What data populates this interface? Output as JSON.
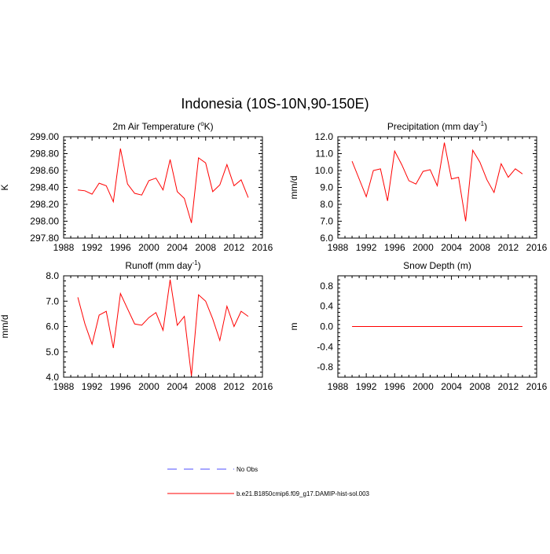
{
  "figure": {
    "title": "Indonesia (10S-10N,90-150E)"
  },
  "legend": {
    "items": [
      {
        "label": "No Obs",
        "color": "#4d4dff",
        "dash": true
      },
      {
        "label": "b.e21.B1850cmip6.f09_g17.DAMIP-hist-sol.003",
        "color": "#ff0000",
        "dash": false
      }
    ]
  },
  "chart_data": [
    {
      "type": "line",
      "title_main": "2m Air Temperature (",
      "title_sup": "o",
      "title_tail": "K)",
      "ylabel": "K",
      "xlim": [
        1988,
        2016
      ],
      "ylim": [
        297.8,
        299.0
      ],
      "xticks": [
        1988,
        1992,
        1996,
        2000,
        2004,
        2008,
        2012,
        2016
      ],
      "yticks": [
        297.8,
        298.0,
        298.2,
        298.4,
        298.6,
        298.8,
        299.0
      ],
      "ytick_labels": [
        "297.80",
        "298.00",
        "298.20",
        "298.40",
        "298.60",
        "298.80",
        "299.00"
      ],
      "x": [
        1990,
        1991,
        1992,
        1993,
        1994,
        1995,
        1996,
        1997,
        1998,
        1999,
        2000,
        2001,
        2002,
        2003,
        2004,
        2005,
        2006,
        2007,
        2008,
        2009,
        2010,
        2011,
        2012,
        2013,
        2014
      ],
      "series": [
        {
          "color": "#ff0000",
          "values": [
            298.37,
            298.36,
            298.32,
            298.45,
            298.42,
            298.23,
            298.86,
            298.44,
            298.33,
            298.31,
            298.48,
            298.51,
            298.37,
            298.73,
            298.35,
            298.27,
            297.98,
            298.75,
            298.69,
            298.35,
            298.43,
            298.67,
            298.42,
            298.49,
            298.28
          ]
        }
      ]
    },
    {
      "type": "line",
      "title_main": "Precipitation (mm day",
      "title_sup": "-1",
      "title_tail": ")",
      "ylabel": "mm/d",
      "xlim": [
        1988,
        2016
      ],
      "ylim": [
        6.0,
        12.0
      ],
      "xticks": [
        1988,
        1992,
        1996,
        2000,
        2004,
        2008,
        2012,
        2016
      ],
      "yticks": [
        6,
        7,
        8,
        9,
        10,
        11,
        12
      ],
      "ytick_labels": [
        "6.0",
        "7.0",
        "8.0",
        "9.0",
        "10.0",
        "11.0",
        "12.0"
      ],
      "x": [
        1990,
        1991,
        1992,
        1993,
        1994,
        1995,
        1996,
        1997,
        1998,
        1999,
        2000,
        2001,
        2002,
        2003,
        2004,
        2005,
        2006,
        2007,
        2008,
        2009,
        2010,
        2011,
        2012,
        2013,
        2014
      ],
      "series": [
        {
          "color": "#ff0000",
          "values": [
            10.55,
            9.5,
            8.45,
            10.0,
            10.1,
            8.2,
            11.15,
            10.35,
            9.4,
            9.2,
            9.95,
            10.05,
            9.1,
            11.65,
            9.5,
            9.6,
            7.0,
            11.2,
            10.5,
            9.45,
            8.7,
            10.4,
            9.6,
            10.1,
            9.8
          ]
        }
      ]
    },
    {
      "type": "line",
      "title_main": "Runoff (mm day",
      "title_sup": "-1",
      "title_tail": ")",
      "ylabel": "mm/d",
      "xlim": [
        1988,
        2016
      ],
      "ylim": [
        4.0,
        8.0
      ],
      "xticks": [
        1988,
        1992,
        1996,
        2000,
        2004,
        2008,
        2012,
        2016
      ],
      "yticks": [
        4,
        5,
        6,
        7,
        8
      ],
      "ytick_labels": [
        "4.0",
        "5.0",
        "6.0",
        "7.0",
        "8.0"
      ],
      "x": [
        1990,
        1991,
        1992,
        1993,
        1994,
        1995,
        1996,
        1997,
        1998,
        1999,
        2000,
        2001,
        2002,
        2003,
        2004,
        2005,
        2006,
        2007,
        2008,
        2009,
        2010,
        2011,
        2012,
        2013,
        2014
      ],
      "series": [
        {
          "color": "#ff0000",
          "values": [
            7.15,
            6.1,
            5.3,
            6.45,
            6.6,
            5.15,
            7.3,
            6.7,
            6.1,
            6.05,
            6.35,
            6.55,
            5.85,
            7.85,
            6.05,
            6.4,
            4.05,
            7.25,
            7.0,
            6.3,
            5.45,
            6.8,
            6.0,
            6.6,
            6.4
          ]
        }
      ]
    },
    {
      "type": "line",
      "title_main": "Snow Depth (m)",
      "title_sup": "",
      "title_tail": "",
      "ylabel": "m",
      "xlim": [
        1988,
        2016
      ],
      "ylim": [
        -1.0,
        1.0
      ],
      "xticks": [
        1988,
        1992,
        1996,
        2000,
        2004,
        2008,
        2012,
        2016
      ],
      "yticks": [
        -0.8,
        -0.4,
        0.0,
        0.4,
        0.8
      ],
      "ytick_labels": [
        "-0.8",
        "-0.4",
        "0.0",
        "0.4",
        "0.8"
      ],
      "x": [
        1990,
        1991,
        1992,
        1993,
        1994,
        1995,
        1996,
        1997,
        1998,
        1999,
        2000,
        2001,
        2002,
        2003,
        2004,
        2005,
        2006,
        2007,
        2008,
        2009,
        2010,
        2011,
        2012,
        2013,
        2014
      ],
      "series": [
        {
          "color": "#ff0000",
          "values": [
            0,
            0,
            0,
            0,
            0,
            0,
            0,
            0,
            0,
            0,
            0,
            0,
            0,
            0,
            0,
            0,
            0,
            0,
            0,
            0,
            0,
            0,
            0,
            0,
            0
          ]
        }
      ]
    }
  ]
}
